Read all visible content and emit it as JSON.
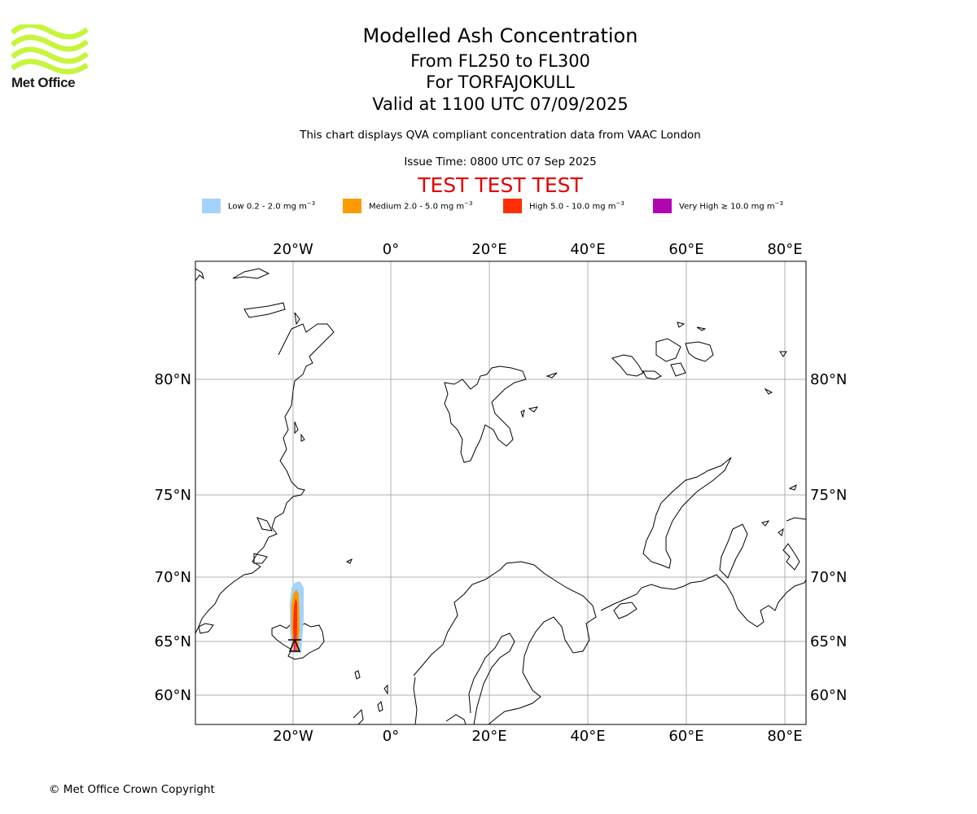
{
  "header": {
    "title": "Modelled Ash Concentration",
    "levels": "From FL250 to FL300",
    "volcano": "For TORFAJOKULL",
    "valid": "Valid at 1100 UTC 07/09/2025",
    "description": "This chart displays QVA compliant concentration data from VAAC London",
    "issue_time": "Issue Time: 0800 UTC 07 Sep 2025",
    "test_banner": "TEST TEST TEST"
  },
  "logo": {
    "name": "Met Office",
    "color": "#c6f53c"
  },
  "legend": [
    {
      "label": "Low 0.2 - 2.0 mg m",
      "exp": "−3",
      "color": "#a3d3fb"
    },
    {
      "label": "Medium 2.0 - 5.0 mg m",
      "exp": "−3",
      "color": "#fe9a04"
    },
    {
      "label": "High 5.0 - 10.0 mg m",
      "exp": "−3",
      "color": "#ff2e04"
    },
    {
      "label": "Very High  ≥  10.0 mg m",
      "exp": "−3",
      "color": "#b006b0"
    }
  ],
  "map": {
    "longitude_ticks": [
      "20°W",
      "0°",
      "20°E",
      "40°E",
      "60°E",
      "80°E"
    ],
    "latitude_ticks": [
      "80°N",
      "75°N",
      "70°N",
      "65°N",
      "60°N"
    ],
    "volcano_marker": "volcano-triangle"
  },
  "footer": {
    "copyright": "© Met Office Crown Copyright"
  }
}
